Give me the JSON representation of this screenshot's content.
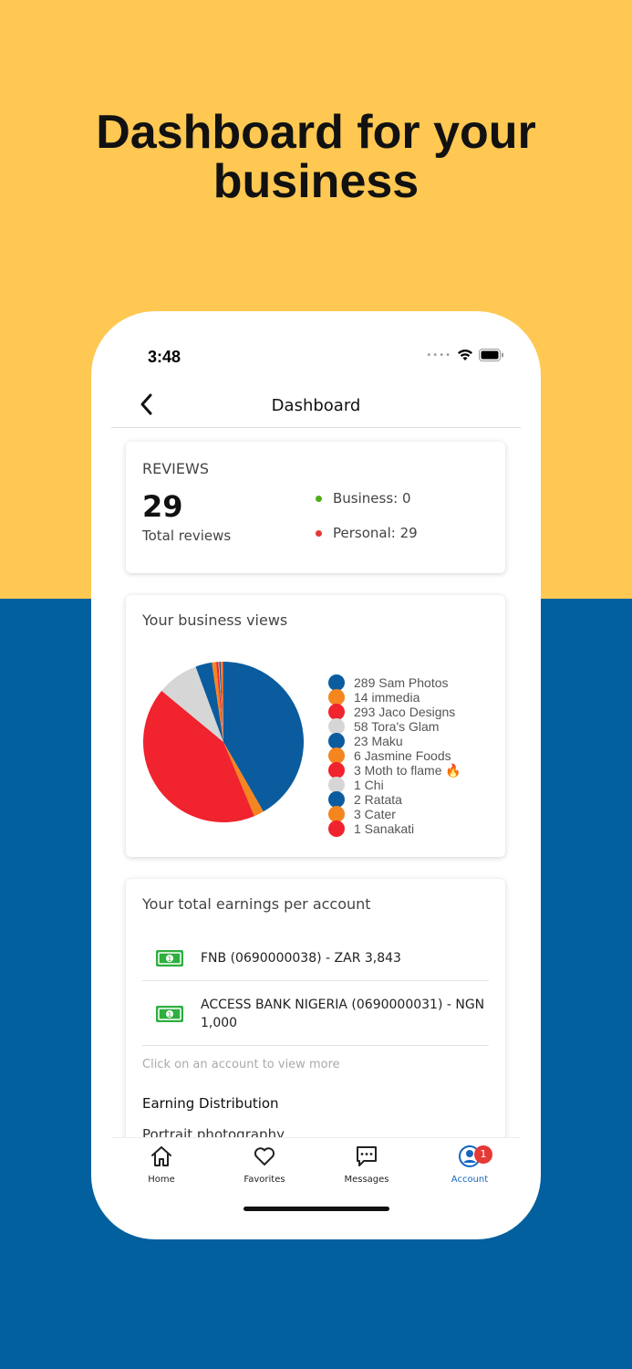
{
  "headline": {
    "line1": "Dashboard for your",
    "line2": "business"
  },
  "colors": {
    "top_bg": "#FEC853",
    "bottom_bg": "#03609E",
    "business_dot": "#4CAF1A",
    "personal_dot": "#E53935",
    "active_tab": "#1565C0"
  },
  "status_bar": {
    "time": "3:48",
    "icons": [
      "signal-dots-icon",
      "wifi-icon",
      "battery-icon"
    ]
  },
  "nav": {
    "title": "Dashboard"
  },
  "reviews": {
    "label": "REVIEWS",
    "total": "29",
    "total_label": "Total reviews",
    "business": "Business: 0",
    "personal": "Personal: 29"
  },
  "views": {
    "title": "Your business views",
    "chart_data": {
      "type": "pie",
      "labels": [
        "Sam Photos",
        "immedia",
        "Jaco Designs",
        "Tora's Glam",
        "Maku",
        "Jasmine Foods",
        "Moth to flame 🔥",
        "Chi",
        "Ratata",
        "Cater",
        "Sanakati"
      ],
      "values": [
        289,
        14,
        293,
        58,
        23,
        6,
        3,
        1,
        2,
        3,
        1
      ],
      "colors": [
        "#0A5C9E",
        "#F5851F",
        "#F0232E",
        "#D6D6D6",
        "#0A5C9E",
        "#F5851F",
        "#F0232E",
        "#D6D6D6",
        "#0A5C9E",
        "#F5851F",
        "#F0232E"
      ]
    },
    "legend": [
      "289 Sam Photos",
      "14 immedia",
      "293 Jaco Designs",
      "58 Tora's Glam",
      "23 Maku",
      "6 Jasmine Foods",
      "3 Moth to flame 🔥",
      "1 Chi",
      "2 Ratata",
      "3 Cater",
      "1 Sanakati"
    ]
  },
  "earnings": {
    "title": "Your total earnings per account",
    "accounts": [
      {
        "label": "FNB (0690000038) - ZAR 3,843"
      },
      {
        "label": "ACCESS BANK NIGERIA (0690000031) - NGN 1,000"
      }
    ],
    "hint": "Click on an account to view more",
    "distribution_title": "Earning Distribution",
    "distribution_first": "Portrait photography"
  },
  "tabs": [
    {
      "label": "Home",
      "icon": "home-icon"
    },
    {
      "label": "Favorites",
      "icon": "heart-icon"
    },
    {
      "label": "Messages",
      "icon": "chat-icon"
    },
    {
      "label": "Account",
      "icon": "account-icon",
      "badge": "1"
    }
  ]
}
